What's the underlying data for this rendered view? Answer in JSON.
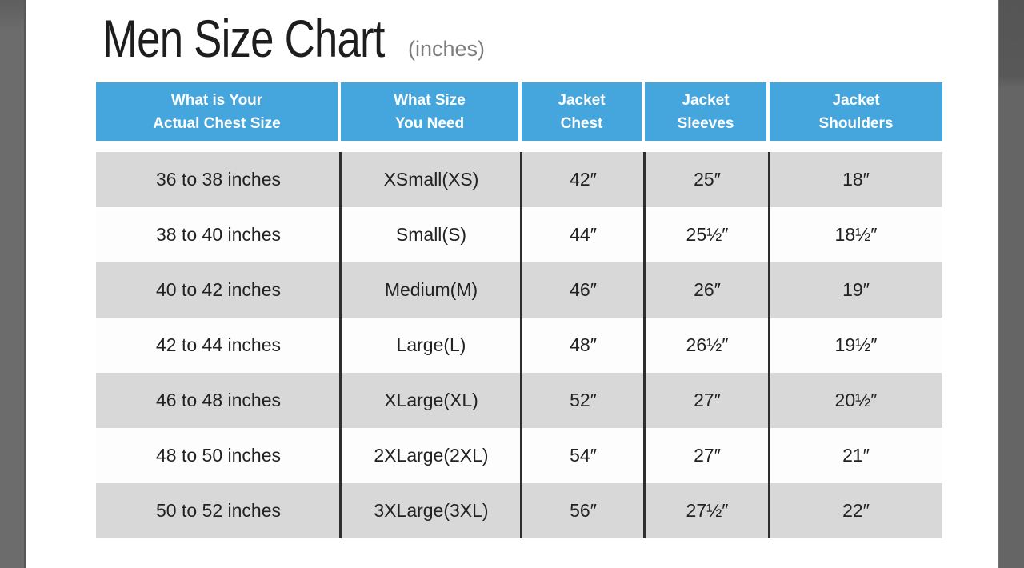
{
  "title": {
    "main": "Men Size Chart",
    "suffix": "(inches)"
  },
  "colors": {
    "header_bg": "#45a6dd",
    "header_text": "#ffffff",
    "row_alt_bg": "#d8d8d8",
    "row_bg": "#fdfdfd",
    "body_text": "#222222",
    "divider": "#2e2e2e",
    "side_bar_left": "#6c6c6c",
    "side_bar_right": "#656565",
    "title_text": "#1d1d1d",
    "title_suffix_text": "#7e7e7e"
  },
  "header": {
    "cells": [
      [
        "What is Your",
        "Actual Chest Size"
      ],
      [
        "What Size",
        "You Need"
      ],
      [
        "Jacket",
        "Chest"
      ],
      [
        "Jacket",
        "Sleeves"
      ],
      [
        "Jacket",
        "Shoulders"
      ]
    ]
  },
  "chart_data": {
    "type": "table",
    "title": "Men Size Chart",
    "title_suffix": "(inches)",
    "columns": [
      "What is Your Actual Chest Size",
      "What Size You Need",
      "Jacket Chest",
      "Jacket Sleeves",
      "Jacket Shoulders"
    ],
    "rows": [
      [
        "36 to 38 inches",
        "XSmall(XS)",
        "42″",
        "25″",
        "18″"
      ],
      [
        "38 to 40 inches",
        "Small(S)",
        "44″",
        "25½″",
        "18½″"
      ],
      [
        "40 to 42 inches",
        "Medium(M)",
        "46″",
        "26″",
        "19″"
      ],
      [
        "42 to 44 inches",
        "Large(L)",
        "48″",
        "26½″",
        "19½″"
      ],
      [
        "46 to 48 inches",
        "XLarge(XL)",
        "52″",
        "27″",
        "20½″"
      ],
      [
        "48 to 50 inches",
        "2XLarge(2XL)",
        "54″",
        "27″",
        "21″"
      ],
      [
        "50 to 52 inches",
        "3XLarge(3XL)",
        "56″",
        "27½″",
        "22″"
      ]
    ]
  }
}
